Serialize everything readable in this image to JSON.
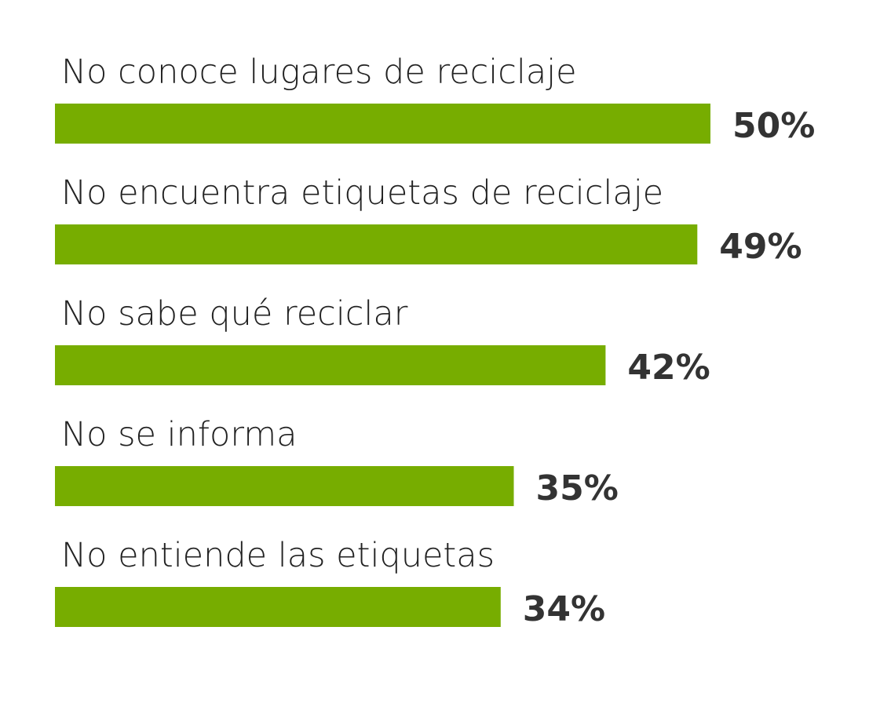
{
  "chart_data": {
    "type": "bar",
    "orientation": "horizontal",
    "categories": [
      "No conoce lugares de reciclaje",
      "No encuentra etiquetas de reciclaje",
      "No sabe qué reciclar",
      "No se informa",
      "No entiende las etiquetas"
    ],
    "values": [
      50,
      49,
      42,
      35,
      34
    ],
    "value_labels": [
      "50%",
      "49%",
      "42%",
      "35%",
      "34%"
    ],
    "color": "#77ad00"
  }
}
